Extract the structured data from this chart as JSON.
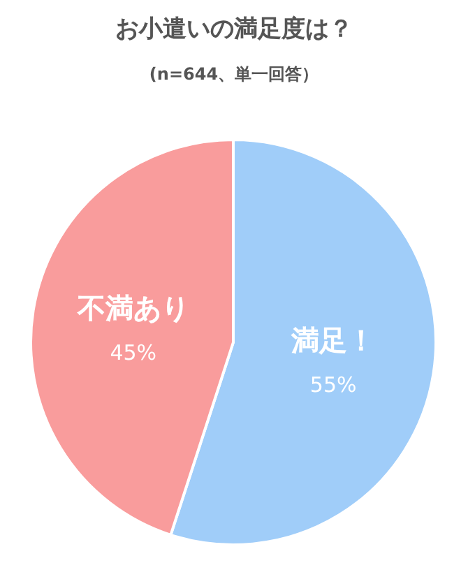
{
  "chart_data": {
    "type": "pie",
    "title": "お小遣いの満足度は？",
    "subtitle": "(n=644、単一回答）",
    "categories": [
      "満足！",
      "不満あり"
    ],
    "values": [
      55,
      45
    ],
    "value_labels": [
      "55%",
      "45%"
    ],
    "colors": [
      "#a0cdf9",
      "#f99c9c"
    ],
    "data_labels": false
  }
}
